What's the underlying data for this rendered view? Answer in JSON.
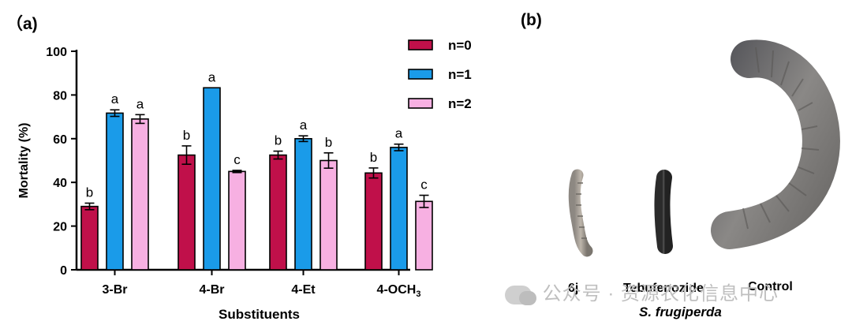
{
  "panels": {
    "a": "（a)",
    "b": "(b)"
  },
  "chart_data": {
    "type": "bar",
    "ylabel": "Mortality (%)",
    "xlabel": "Substituents",
    "ylim": [
      0,
      100
    ],
    "yticks": [
      0,
      20,
      40,
      60,
      80,
      100
    ],
    "categories": [
      "3-Br",
      "4-Br",
      "4-Et",
      "4-OCH₃"
    ],
    "legend_position": "top-right",
    "series": [
      {
        "name": "n=0",
        "color": "#c0104a",
        "values": [
          29,
          52.5,
          52.5,
          44.3
        ],
        "errors": [
          1.5,
          4.2,
          1.8,
          2.3
        ],
        "labels": [
          "b",
          "b",
          "b",
          "b"
        ]
      },
      {
        "name": "n=1",
        "color": "#1a9be9",
        "values": [
          71.7,
          83.3,
          60,
          56
        ],
        "errors": [
          1.5,
          0,
          1.3,
          1.5
        ],
        "labels": [
          "a",
          "a",
          "a",
          "a"
        ]
      },
      {
        "name": "n=2",
        "color": "#f7b0e2",
        "values": [
          69,
          45,
          50,
          31.3
        ],
        "errors": [
          2,
          0.5,
          3.5,
          2.8
        ],
        "labels": [
          "a",
          "c",
          "b",
          "c"
        ]
      }
    ]
  },
  "photo": {
    "labels": [
      "6j",
      "Tebufenozide",
      "Control"
    ],
    "species": "S. frugiperda",
    "watermark": "公众号 · 资源农化信息中心"
  }
}
